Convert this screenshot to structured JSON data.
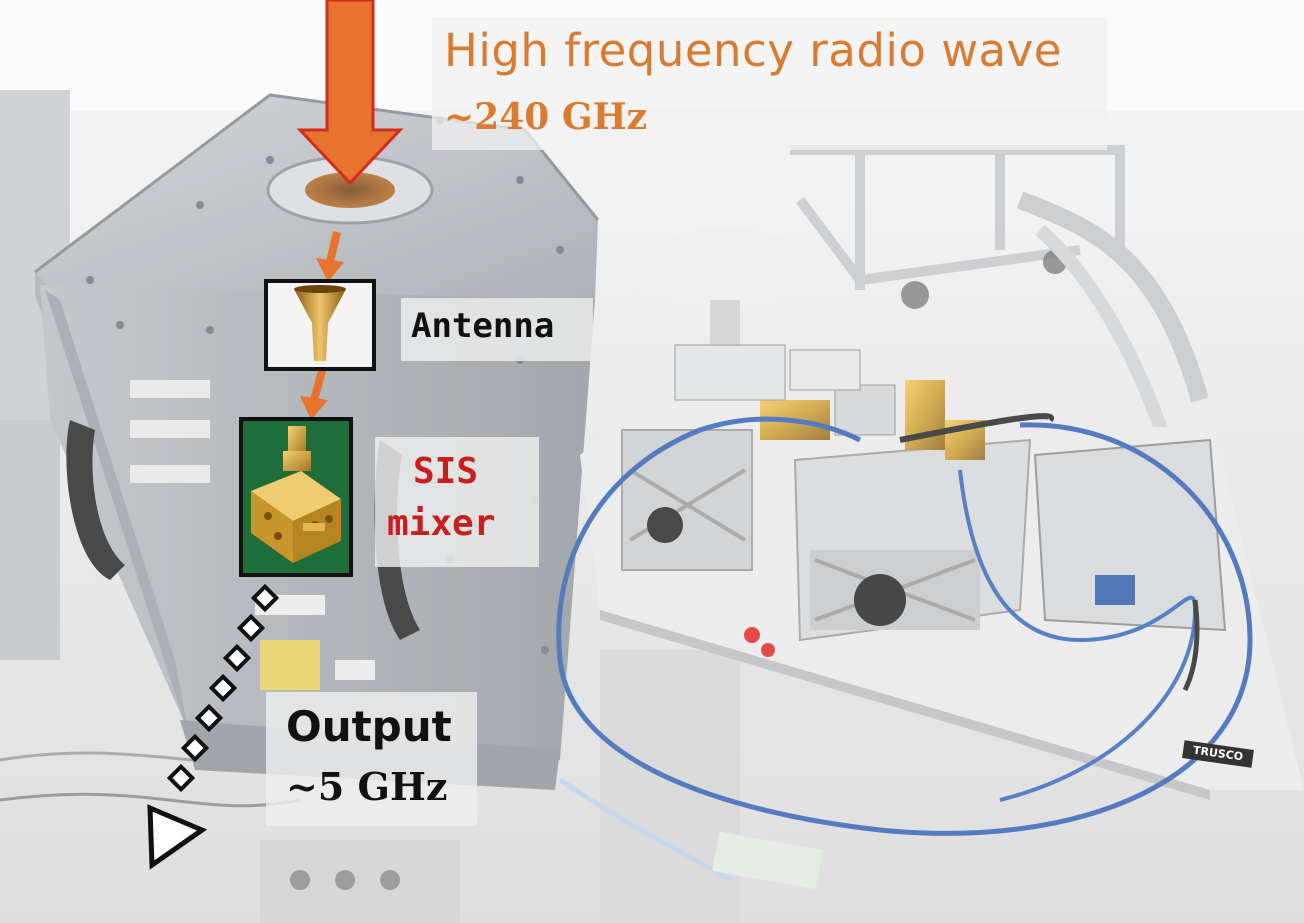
{
  "title": {
    "heading": "High frequency radio wave",
    "frequency": "~240 GHz"
  },
  "labels": {
    "antenna": "Antenna",
    "sis_line1": "SIS",
    "sis_line2": "mixer",
    "output": "Output",
    "output_frequency": "~5 GHz"
  },
  "photo": {
    "brand_plate": "TRUSCO"
  },
  "colors": {
    "accent_orange": "#e8732e",
    "title_text": "#d97b30",
    "sis_red": "#c81e1e"
  }
}
